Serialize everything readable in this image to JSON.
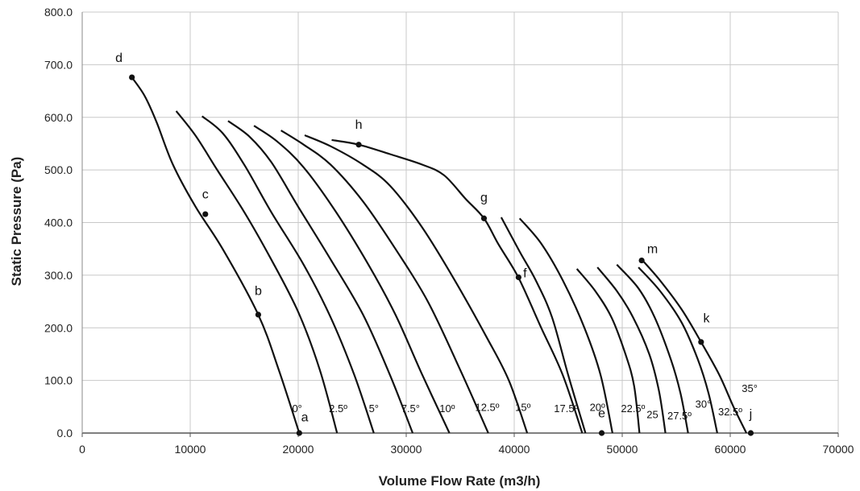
{
  "chart_data": {
    "type": "line",
    "title": "",
    "xlabel": "Volume Flow Rate (m3/h)",
    "ylabel": "Static Pressure (Pa)",
    "xlim": [
      0,
      70000
    ],
    "ylim": [
      0,
      800
    ],
    "x_ticks": [
      "0",
      "10000",
      "20000",
      "30000",
      "40000",
      "50000",
      "60000",
      "70000"
    ],
    "x_tick_values": [
      0,
      10000,
      20000,
      30000,
      40000,
      50000,
      60000,
      70000
    ],
    "y_ticks": [
      "0.0",
      "100.0",
      "200.0",
      "300.0",
      "400.0",
      "500.0",
      "600.0",
      "700.0",
      "800.0"
    ],
    "y_tick_values": [
      0,
      100,
      200,
      300,
      400,
      500,
      600,
      700,
      800
    ],
    "grid": true,
    "line_color": "#111111",
    "series": [
      {
        "name": "0°",
        "points": [
          [
            4600,
            676
          ],
          [
            5800,
            640
          ],
          [
            6900,
            590
          ],
          [
            8400,
            510
          ],
          [
            10500,
            430
          ],
          [
            13000,
            350
          ],
          [
            16300,
            225
          ],
          [
            18200,
            120
          ],
          [
            20100,
            0
          ]
        ]
      },
      {
        "name": "2.5º",
        "points": [
          [
            8700,
            612
          ],
          [
            10500,
            565
          ],
          [
            12500,
            500
          ],
          [
            15000,
            420
          ],
          [
            17500,
            330
          ],
          [
            20000,
            230
          ],
          [
            22000,
            120
          ],
          [
            23600,
            0
          ]
        ]
      },
      {
        "name": "5°",
        "points": [
          [
            11100,
            602
          ],
          [
            13000,
            570
          ],
          [
            15000,
            510
          ],
          [
            17500,
            420
          ],
          [
            20500,
            320
          ],
          [
            23000,
            220
          ],
          [
            25200,
            110
          ],
          [
            27000,
            0
          ]
        ]
      },
      {
        "name": "7.5°",
        "points": [
          [
            13500,
            593
          ],
          [
            15500,
            563
          ],
          [
            17500,
            515
          ],
          [
            20000,
            430
          ],
          [
            23000,
            330
          ],
          [
            26000,
            225
          ],
          [
            28500,
            110
          ],
          [
            30600,
            0
          ]
        ]
      },
      {
        "name": "10º",
        "points": [
          [
            15900,
            584
          ],
          [
            18000,
            555
          ],
          [
            20500,
            505
          ],
          [
            23500,
            420
          ],
          [
            26500,
            320
          ],
          [
            29000,
            225
          ],
          [
            31500,
            110
          ],
          [
            34000,
            0
          ]
        ]
      },
      {
        "name": "12.5º",
        "points": [
          [
            18400,
            575
          ],
          [
            20500,
            548
          ],
          [
            23000,
            510
          ],
          [
            26000,
            440
          ],
          [
            29000,
            350
          ],
          [
            32000,
            250
          ],
          [
            35000,
            120
          ],
          [
            37600,
            0
          ]
        ]
      },
      {
        "name": "15º",
        "points": [
          [
            20600,
            566
          ],
          [
            23000,
            545
          ],
          [
            26000,
            510
          ],
          [
            28500,
            470
          ],
          [
            31500,
            390
          ],
          [
            34500,
            290
          ],
          [
            37500,
            180
          ],
          [
            39500,
            100
          ],
          [
            41200,
            0
          ]
        ]
      },
      {
        "name": "",
        "points": [
          [
            23100,
            557
          ],
          [
            25600,
            548
          ],
          [
            28500,
            530
          ],
          [
            31500,
            510
          ],
          [
            33500,
            490
          ],
          [
            35500,
            445
          ],
          [
            37200,
            408
          ],
          [
            38500,
            360
          ],
          [
            40400,
            295
          ],
          [
            42500,
            200
          ],
          [
            44500,
            110
          ],
          [
            46300,
            0
          ]
        ]
      },
      {
        "name": "17.5º",
        "points": [
          [
            38800,
            410
          ],
          [
            40500,
            345
          ],
          [
            42000,
            290
          ],
          [
            43500,
            220
          ],
          [
            45000,
            110
          ],
          [
            46600,
            0
          ]
        ]
      },
      {
        "name": "20º",
        "points": [
          [
            40500,
            408
          ],
          [
            42500,
            360
          ],
          [
            44500,
            290
          ],
          [
            46500,
            200
          ],
          [
            48000,
            110
          ],
          [
            49100,
            0
          ]
        ]
      },
      {
        "name": "22.5º",
        "points": [
          [
            45800,
            312
          ],
          [
            47500,
            270
          ],
          [
            49000,
            220
          ],
          [
            50300,
            150
          ],
          [
            51100,
            90
          ],
          [
            51600,
            0
          ]
        ]
      },
      {
        "name": "25",
        "points": [
          [
            47700,
            315
          ],
          [
            49500,
            270
          ],
          [
            51000,
            220
          ],
          [
            52500,
            150
          ],
          [
            53400,
            80
          ],
          [
            54000,
            0
          ]
        ]
      },
      {
        "name": "27.5º",
        "points": [
          [
            49500,
            320
          ],
          [
            51500,
            275
          ],
          [
            53000,
            220
          ],
          [
            54500,
            140
          ],
          [
            55400,
            75
          ],
          [
            56100,
            0
          ]
        ]
      },
      {
        "name": "30°",
        "points": [
          [
            51500,
            315
          ],
          [
            53500,
            270
          ],
          [
            55500,
            210
          ],
          [
            57000,
            140
          ],
          [
            58000,
            75
          ],
          [
            58800,
            0
          ]
        ]
      },
      {
        "name": "32.5º",
        "points": [
          [
            51800,
            330
          ],
          [
            53500,
            290
          ],
          [
            55500,
            235
          ],
          [
            57300,
            173
          ],
          [
            59000,
            110
          ],
          [
            60300,
            50
          ],
          [
            61500,
            0
          ]
        ]
      },
      {
        "name": "35°",
        "points": []
      }
    ],
    "curve_labels": [
      {
        "text": "0°",
        "x": 19900,
        "y": 40
      },
      {
        "text": "2.5º",
        "x": 23700,
        "y": 40
      },
      {
        "text": "5°",
        "x": 27000,
        "y": 40
      },
      {
        "text": "7.5°",
        "x": 30400,
        "y": 40
      },
      {
        "text": "10º",
        "x": 33800,
        "y": 40
      },
      {
        "text": "12.5º",
        "x": 37500,
        "y": 42
      },
      {
        "text": "15º",
        "x": 40800,
        "y": 42
      },
      {
        "text": "17.5º",
        "x": 44800,
        "y": 40
      },
      {
        "text": "20º",
        "x": 47700,
        "y": 42
      },
      {
        "text": "22.5º",
        "x": 51000,
        "y": 40
      },
      {
        "text": "25",
        "x": 52800,
        "y": 28
      },
      {
        "text": "27.5º",
        "x": 55300,
        "y": 26
      },
      {
        "text": "30°",
        "x": 57500,
        "y": 48
      },
      {
        "text": "32.5º",
        "x": 60000,
        "y": 34
      },
      {
        "text": "35°",
        "x": 61800,
        "y": 78
      }
    ],
    "marked_points": [
      {
        "label": "a",
        "x": 20100,
        "y": 0,
        "lx": 20600,
        "ly": 22
      },
      {
        "label": "b",
        "x": 16300,
        "y": 225,
        "lx": 16300,
        "ly": 262
      },
      {
        "label": "c",
        "x": 11400,
        "y": 416,
        "lx": 11400,
        "ly": 446
      },
      {
        "label": "d",
        "x": 4600,
        "y": 676,
        "lx": 3400,
        "ly": 705
      },
      {
        "label": "e",
        "x": 48100,
        "y": 0,
        "lx": 48100,
        "ly": 30
      },
      {
        "label": "f",
        "x": 40400,
        "y": 296,
        "lx": 41000,
        "ly": 296
      },
      {
        "label": "g",
        "x": 37200,
        "y": 408,
        "lx": 37200,
        "ly": 440
      },
      {
        "label": "h",
        "x": 25600,
        "y": 548,
        "lx": 25600,
        "ly": 578
      },
      {
        "label": "j",
        "x": 61900,
        "y": 0,
        "lx": 61900,
        "ly": 28
      },
      {
        "label": "k",
        "x": 57300,
        "y": 173,
        "lx": 57800,
        "ly": 210
      },
      {
        "label": "m",
        "x": 51800,
        "y": 328,
        "lx": 52800,
        "ly": 342
      }
    ]
  }
}
